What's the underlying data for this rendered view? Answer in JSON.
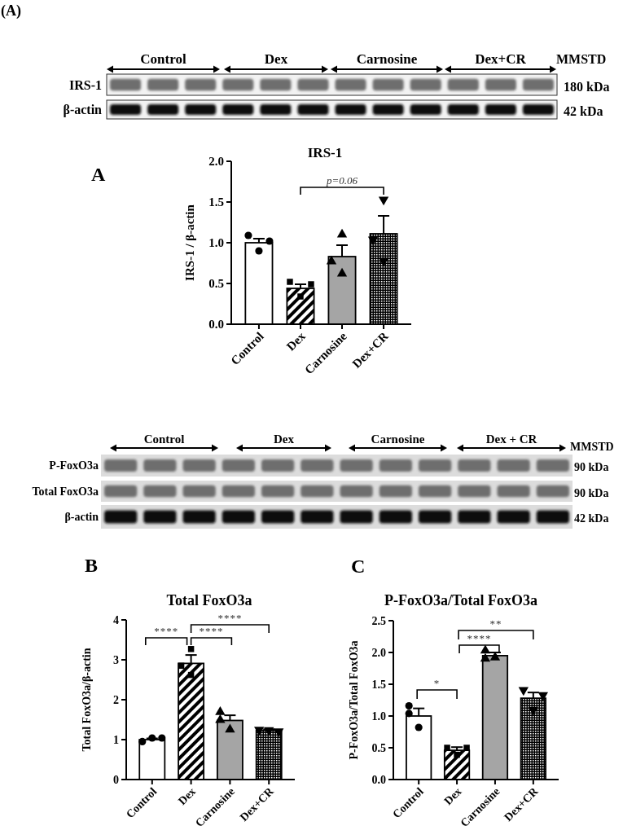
{
  "chart_data": [
    {
      "type": "other",
      "title": "(A)",
      "categories": [
        "Control",
        "Dex",
        "Carnosine",
        "Dex+CR"
      ],
      "y_categories": [
        "IRS-1",
        "β-actin"
      ],
      "y2_categories": [
        "180 kDa",
        "42 kDa"
      ],
      "annotations": [
        "MMSTD"
      ]
    },
    {
      "type": "bar",
      "title": "IRS-1",
      "ylabel": "IRS-1 / β-actin",
      "categories": [
        "Control",
        "Dex",
        "Carnosine",
        "Dex+CR"
      ],
      "ylim": [
        0,
        2
      ],
      "yticks": [
        {
          "value": 0,
          "label": "0.0"
        },
        0.5,
        {
          "value": 1,
          "label": "1.0"
        },
        1.5,
        {
          "value": 2,
          "label": "2.0"
        }
      ],
      "annotations": [
        "A",
        "p=0.06"
      ],
      "series": [
        {
          "type": "bar",
          "values": [
            1.0,
            0.44,
            0.83,
            1.11
          ],
          "colors": [
            "#ffffff",
            "#000000",
            "#a5a5a5",
            "#000000"
          ],
          "errors": [
            [
              1.0,
              1.05
            ],
            [
              0.44,
              0.49
            ],
            [
              0.83,
              0.97
            ],
            [
              1.11,
              1.33
            ]
          ]
        },
        {
          "type": "scatter",
          "x": [
            "Control",
            "Control",
            "Control"
          ],
          "values": [
            0.9,
            1.09,
            1.02
          ],
          "marker": "circle",
          "color": "#000000"
        },
        {
          "type": "scatter",
          "x": [
            "Dex",
            "Dex",
            "Dex"
          ],
          "values": [
            0.34,
            0.52,
            0.49
          ],
          "marker": "square",
          "color": "#000000"
        },
        {
          "type": "scatter",
          "x": [
            "Carnosine",
            "Carnosine",
            "Carnosine"
          ],
          "values": [
            1.1,
            0.77,
            0.62
          ],
          "marker": "triangle",
          "color": "#000000"
        },
        {
          "type": "scatter",
          "x": [
            "Dex+CR",
            "Dex+CR",
            "Dex+CR"
          ],
          "values": [
            1.53,
            1.04,
            0.78
          ],
          "marker": "triangle-down",
          "color": "#000000"
        }
      ]
    },
    {
      "type": "other",
      "categories": [
        "Control",
        "Dex",
        "Carnosine",
        "Dex + CR"
      ],
      "y_categories": [
        "P-FoxO3a",
        "Total FoxO3a",
        "β-actin"
      ],
      "y2_categories": [
        "90 kDa",
        "90 kDa",
        "42 kDa"
      ],
      "annotations": [
        "MMSTD"
      ]
    },
    {
      "type": "bar",
      "title": "Total FoxO3a",
      "ylabel": "Total FoxO3a/β-actin",
      "categories": [
        "Control",
        "Dex",
        "Carnosine",
        "Dex+CR"
      ],
      "ylim": [
        0,
        4
      ],
      "yticks": [
        0,
        1,
        2,
        3,
        4
      ],
      "annotations": [
        "B",
        "****",
        "****",
        "****"
      ],
      "series": [
        {
          "type": "bar",
          "values": [
            1.0,
            2.91,
            1.48,
            1.23
          ],
          "colors": [
            "#ffffff",
            "#000000",
            "#a5a5a5",
            "#000000"
          ],
          "errors": [
            [
              1.0,
              1.03
            ],
            [
              2.91,
              3.12
            ],
            [
              1.48,
              1.61
            ],
            [
              1.23,
              1.26
            ]
          ]
        },
        {
          "type": "scatter",
          "x": [
            "Control",
            "Control",
            "Control"
          ],
          "values": [
            1.04,
            0.95,
            1.04
          ],
          "marker": "circle",
          "color": "#000000"
        },
        {
          "type": "scatter",
          "x": [
            "Dex",
            "Dex",
            "Dex"
          ],
          "values": [
            3.27,
            2.85,
            2.62
          ],
          "marker": "square",
          "color": "#000000"
        },
        {
          "type": "scatter",
          "x": [
            "Carnosine",
            "Carnosine",
            "Carnosine"
          ],
          "values": [
            1.69,
            1.49,
            1.25
          ],
          "marker": "triangle",
          "color": "#000000"
        },
        {
          "type": "scatter",
          "x": [
            "Dex+CR",
            "Dex+CR",
            "Dex+CR"
          ],
          "values": [
            1.24,
            1.25,
            1.21
          ],
          "marker": "triangle-down",
          "color": "#000000"
        }
      ]
    },
    {
      "type": "bar",
      "title": "P-FoxO3a/Total FoxO3a",
      "ylabel": "P-FoxO3a/Total FoxO3a",
      "categories": [
        "Control",
        "Dex",
        "Carnosine",
        "Dex+CR"
      ],
      "ylim": [
        0,
        2.5
      ],
      "yticks": [
        {
          "value": 0,
          "label": "0.0"
        },
        0.5,
        {
          "value": 1,
          "label": "1.0"
        },
        1.5,
        {
          "value": 2,
          "label": "2.0"
        },
        2.5
      ],
      "annotations": [
        "C",
        "*",
        "****",
        "**"
      ],
      "series": [
        {
          "type": "bar",
          "values": [
            1.0,
            0.46,
            1.95,
            1.28
          ],
          "colors": [
            "#ffffff",
            "#000000",
            "#a5a5a5",
            "#000000"
          ],
          "errors": [
            [
              1.0,
              1.12
            ],
            [
              0.46,
              0.51
            ],
            [
              1.95,
              2.0
            ],
            [
              1.28,
              1.37
            ]
          ]
        },
        {
          "type": "scatter",
          "x": [
            "Control",
            "Control",
            "Control"
          ],
          "values": [
            1.16,
            1.04,
            0.82
          ],
          "marker": "circle",
          "color": "#000000"
        },
        {
          "type": "scatter",
          "x": [
            "Dex",
            "Dex",
            "Dex"
          ],
          "values": [
            0.39,
            0.5,
            0.5
          ],
          "marker": "square",
          "color": "#000000"
        },
        {
          "type": "scatter",
          "x": [
            "Carnosine",
            "Carnosine",
            "Carnosine"
          ],
          "values": [
            1.92,
            2.03,
            1.9
          ],
          "marker": "triangle",
          "color": "#000000"
        },
        {
          "type": "scatter",
          "x": [
            "Dex+CR",
            "Dex+CR",
            "Dex+CR"
          ],
          "values": [
            1.1,
            1.41,
            1.33
          ],
          "marker": "triangle-down",
          "color": "#000000"
        }
      ]
    }
  ]
}
